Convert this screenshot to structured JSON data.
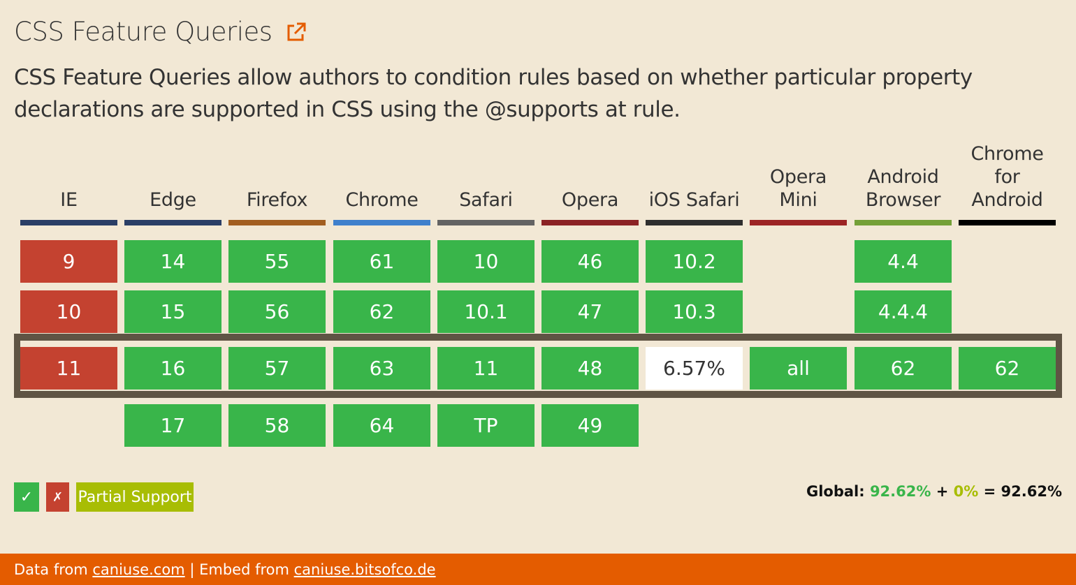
{
  "title": "CSS Feature Queries",
  "description": "CSS Feature Queries allow authors to condition rules based on whether particular property declarations are supported in CSS using the @supports at rule.",
  "browsers": [
    {
      "name": "IE",
      "color": "#2a3e66",
      "cells": [
        {
          "v": "9",
          "s": "n"
        },
        {
          "v": "10",
          "s": "n"
        },
        {
          "v": "11",
          "s": "n"
        },
        {
          "v": "",
          "s": ""
        }
      ]
    },
    {
      "name": "Edge",
      "color": "#2a3e66",
      "cells": [
        {
          "v": "14",
          "s": "y"
        },
        {
          "v": "15",
          "s": "y"
        },
        {
          "v": "16",
          "s": "y"
        },
        {
          "v": "17",
          "s": "y"
        }
      ]
    },
    {
      "name": "Firefox",
      "color": "#a25e20",
      "cells": [
        {
          "v": "55",
          "s": "y"
        },
        {
          "v": "56",
          "s": "y"
        },
        {
          "v": "57",
          "s": "y"
        },
        {
          "v": "58",
          "s": "y"
        }
      ]
    },
    {
      "name": "Chrome",
      "color": "#3f80cc",
      "cells": [
        {
          "v": "61",
          "s": "y"
        },
        {
          "v": "62",
          "s": "y"
        },
        {
          "v": "63",
          "s": "y"
        },
        {
          "v": "64",
          "s": "y"
        }
      ]
    },
    {
      "name": "Safari",
      "color": "#636363",
      "cells": [
        {
          "v": "10",
          "s": "y"
        },
        {
          "v": "10.1",
          "s": "y"
        },
        {
          "v": "11",
          "s": "y"
        },
        {
          "v": "TP",
          "s": "y"
        }
      ]
    },
    {
      "name": "Opera",
      "color": "#8b2224",
      "cells": [
        {
          "v": "46",
          "s": "y"
        },
        {
          "v": "47",
          "s": "y"
        },
        {
          "v": "48",
          "s": "y"
        },
        {
          "v": "49",
          "s": "y"
        }
      ]
    },
    {
      "name": "iOS Safari",
      "color": "#2e2e2e",
      "cells": [
        {
          "v": "10.2",
          "s": "y"
        },
        {
          "v": "10.3",
          "s": "y"
        },
        {
          "v": "6.57%",
          "s": "u"
        },
        {
          "v": "",
          "s": ""
        }
      ]
    },
    {
      "name": "Opera Mini",
      "color": "#9c2424",
      "cells": [
        {
          "v": "",
          "s": ""
        },
        {
          "v": "",
          "s": ""
        },
        {
          "v": "all",
          "s": "y"
        },
        {
          "v": "",
          "s": ""
        }
      ]
    },
    {
      "name": "Android Browser",
      "color": "#74a037",
      "cells": [
        {
          "v": "4.4",
          "s": "y"
        },
        {
          "v": "4.4.4",
          "s": "y"
        },
        {
          "v": "62",
          "s": "y"
        },
        {
          "v": "",
          "s": ""
        }
      ]
    },
    {
      "name": "Chrome for Android",
      "color": "#000000",
      "cells": [
        {
          "v": "",
          "s": ""
        },
        {
          "v": "",
          "s": ""
        },
        {
          "v": "62",
          "s": "y"
        },
        {
          "v": "",
          "s": ""
        }
      ]
    }
  ],
  "legend": {
    "supported": "✓",
    "unsupported": "✗",
    "partial": "Partial Support"
  },
  "global": {
    "label": "Global:",
    "supported": "92.62%",
    "plus": "+",
    "partial": "0%",
    "equals": "=",
    "total": "92.62%"
  },
  "footer": {
    "prefix": "Data from",
    "data_link": "caniuse.com",
    "separator": "|",
    "embed_prefix": "Embed from",
    "embed_link": "caniuse.bitsofco.de"
  },
  "colors": {
    "supported": "#39b54a",
    "unsupported": "#c44230",
    "partial": "#a8bd04",
    "footer": "#e45c00",
    "current_band": "#5f5444"
  }
}
